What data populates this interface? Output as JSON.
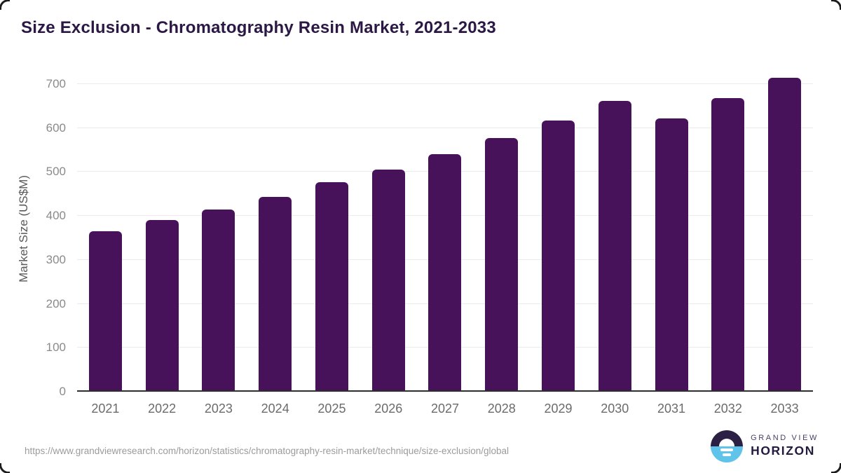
{
  "header": {
    "title": "Size Exclusion - Chromatography Resin Market, 2021-2033"
  },
  "chart_data": {
    "type": "bar",
    "title": "Size Exclusion - Chromatography Resin Market, 2021-2033",
    "categories": [
      "2021",
      "2022",
      "2023",
      "2024",
      "2025",
      "2026",
      "2027",
      "2028",
      "2029",
      "2030",
      "2031",
      "2032",
      "2033"
    ],
    "values": [
      365,
      391,
      415,
      443,
      476,
      506,
      541,
      578,
      617,
      662,
      622,
      668,
      714
    ],
    "xlabel": "",
    "ylabel": "Market Size (US$M)",
    "ylim": [
      0,
      700
    ],
    "yticks": [
      0,
      100,
      200,
      300,
      400,
      500,
      600,
      700
    ],
    "grid": "horizontal",
    "legend": "none",
    "bar_color": "#47125a"
  },
  "footer": {
    "source_url": "https://www.grandviewresearch.com/horizon/statistics/chromatography-resin-market/technique/size-exclusion/global",
    "logo": {
      "line1": "GRAND VIEW",
      "line2": "HORIZON"
    }
  },
  "colors": {
    "bar": "#47125a",
    "title_text": "#2c1845",
    "axis_text": "#8a8a8a",
    "gridline": "#ebebeb",
    "baseline": "#2e2e2e",
    "logo_dark": "#2c2044",
    "logo_blue": "#5fc3ea"
  }
}
